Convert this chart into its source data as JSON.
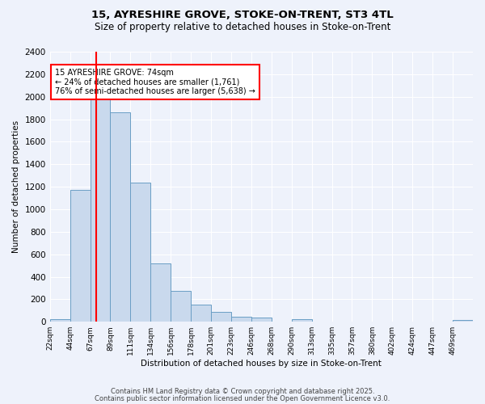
{
  "title_line1": "15, AYRESHIRE GROVE, STOKE-ON-TRENT, ST3 4TL",
  "title_line2": "Size of property relative to detached houses in Stoke-on-Trent",
  "xlabel": "Distribution of detached houses by size in Stoke-on-Trent",
  "ylabel": "Number of detached properties",
  "bin_labels": [
    "22sqm",
    "44sqm",
    "67sqm",
    "89sqm",
    "111sqm",
    "134sqm",
    "156sqm",
    "178sqm",
    "201sqm",
    "223sqm",
    "246sqm",
    "268sqm",
    "290sqm",
    "313sqm",
    "335sqm",
    "357sqm",
    "380sqm",
    "402sqm",
    "424sqm",
    "447sqm",
    "469sqm"
  ],
  "bar_values": [
    25,
    1170,
    2000,
    1860,
    1240,
    520,
    275,
    155,
    90,
    45,
    40,
    0,
    20,
    0,
    0,
    0,
    0,
    0,
    0,
    0,
    15
  ],
  "bar_color": "#c9d9ed",
  "bar_edge_color": "#6a9ec5",
  "background_color": "#eef2fb",
  "grid_color": "#ffffff",
  "vline_color": "red",
  "annotation_text": "15 AYRESHIRE GROVE: 74sqm\n← 24% of detached houses are smaller (1,761)\n76% of semi-detached houses are larger (5,638) →",
  "annotation_box_color": "white",
  "annotation_box_edge": "red",
  "ylim": [
    0,
    2400
  ],
  "yticks": [
    0,
    200,
    400,
    600,
    800,
    1000,
    1200,
    1400,
    1600,
    1800,
    2000,
    2200,
    2400
  ],
  "bin_edges": [
    22,
    44,
    67,
    89,
    111,
    134,
    156,
    178,
    201,
    223,
    246,
    268,
    290,
    313,
    335,
    357,
    380,
    402,
    424,
    447,
    469
  ],
  "vline_x_idx": 2,
  "footnote_line1": "Contains HM Land Registry data © Crown copyright and database right 2025.",
  "footnote_line2": "Contains public sector information licensed under the Open Government Licence v3.0."
}
